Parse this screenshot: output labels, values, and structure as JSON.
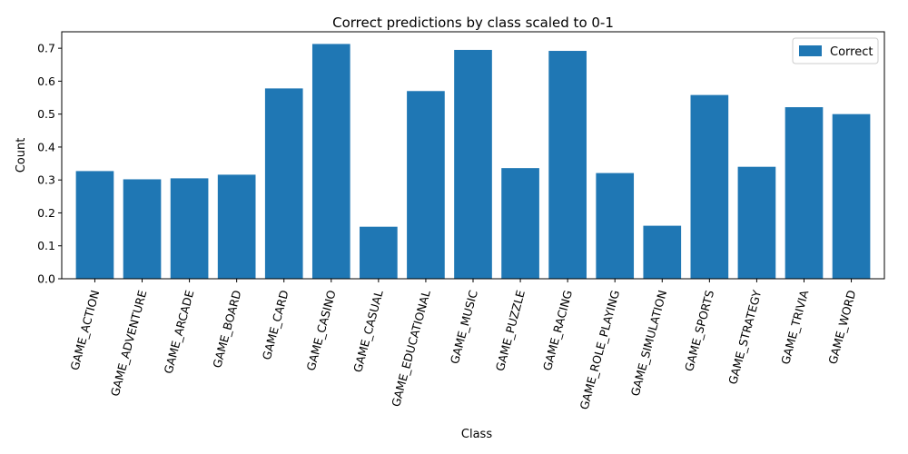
{
  "chart_data": {
    "type": "bar",
    "title": "Correct predictions by class scaled to 0-1",
    "xlabel": "Class",
    "ylabel": "Count",
    "ylim": [
      0,
      0.75
    ],
    "yticks": [
      0.0,
      0.1,
      0.2,
      0.3,
      0.4,
      0.5,
      0.6,
      0.7
    ],
    "ytick_labels": [
      "0.0",
      "0.1",
      "0.2",
      "0.3",
      "0.4",
      "0.5",
      "0.6",
      "0.7"
    ],
    "grid": false,
    "legend_position": "top-right",
    "categories": [
      "GAME_ACTION",
      "GAME_ADVENTURE",
      "GAME_ARCADE",
      "GAME_BOARD",
      "GAME_CARD",
      "GAME_CASINO",
      "GAME_CASUAL",
      "GAME_EDUCATIONAL",
      "GAME_MUSIC",
      "GAME_PUZZLE",
      "GAME_RACING",
      "GAME_ROLE_PLAYING",
      "GAME_SIMULATION",
      "GAME_SPORTS",
      "GAME_STRATEGY",
      "GAME_TRIVIA",
      "GAME_WORD"
    ],
    "series": [
      {
        "name": "Correct",
        "color": "#1f77b4",
        "values": [
          0.327,
          0.302,
          0.305,
          0.316,
          0.578,
          0.713,
          0.158,
          0.57,
          0.695,
          0.336,
          0.692,
          0.321,
          0.161,
          0.558,
          0.34,
          0.521,
          0.5
        ]
      }
    ]
  }
}
